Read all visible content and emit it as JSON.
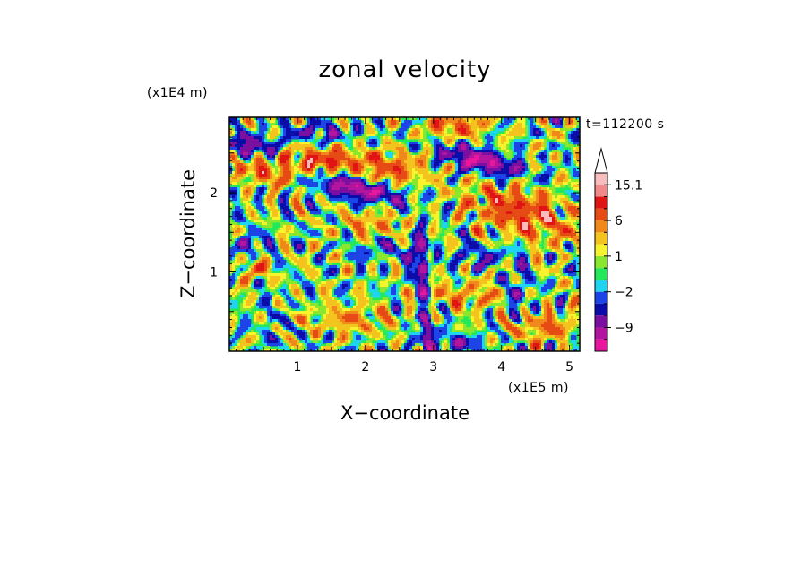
{
  "chart_data": {
    "type": "heatmap",
    "title": "zonal velocity",
    "xlabel": "X−coordinate",
    "ylabel": "Z−coordinate",
    "x_unit": "(x1E5 m)",
    "y_unit": "(x1E4 m)",
    "time_label": "t=112200 s",
    "xlim": [
      0,
      5.15
    ],
    "ylim": [
      0,
      2.95
    ],
    "x_ticks": [
      {
        "value": 1,
        "label": "1"
      },
      {
        "value": 2,
        "label": "2"
      },
      {
        "value": 3,
        "label": "3"
      },
      {
        "value": 4,
        "label": "4"
      },
      {
        "value": 5,
        "label": "5"
      }
    ],
    "y_ticks": [
      {
        "value": 1,
        "label": "1"
      },
      {
        "value": 2,
        "label": "2"
      }
    ],
    "colorbar": {
      "levels": [
        -15,
        -12,
        -9,
        -6,
        -4,
        -2,
        -1,
        0,
        1,
        2,
        4,
        6,
        9,
        12,
        15.1
      ],
      "colors": [
        "#e8179e",
        "#b2169e",
        "#7a0fa0",
        "#0c0ca8",
        "#1c44e6",
        "#1ed4f0",
        "#22e85a",
        "#8be62e",
        "#f7f32c",
        "#f3c41e",
        "#ef8a1a",
        "#e64b16",
        "#e01414",
        "#f08a8a",
        "#f7bcbc"
      ],
      "labels": [
        {
          "value": 15.1,
          "label": "15.1"
        },
        {
          "value": 6,
          "label": "6"
        },
        {
          "value": 1,
          "label": "1"
        },
        {
          "value": -2,
          "label": "−2"
        },
        {
          "value": -9,
          "label": "−9"
        }
      ],
      "extend_max": true
    },
    "features": [
      {
        "x": 1.9,
        "z": 2.05,
        "amp": -12,
        "sx": 0.45,
        "sz": 0.1,
        "rot": -0.18
      },
      {
        "x": 3.7,
        "z": 2.4,
        "amp": -12,
        "sx": 0.42,
        "sz": 0.1,
        "rot": -0.22
      },
      {
        "x": 0.3,
        "z": 2.6,
        "amp": -9,
        "sx": 0.25,
        "sz": 0.08,
        "rot": -0.1
      },
      {
        "x": 1.3,
        "z": 2.75,
        "amp": -6,
        "sx": 0.35,
        "sz": 0.08,
        "rot": 0.0
      },
      {
        "x": 2.85,
        "z": 1.1,
        "amp": -14,
        "sx": 0.08,
        "sz": 0.25,
        "rot": 0.0
      },
      {
        "x": 2.9,
        "z": 0.25,
        "amp": -10,
        "sx": 0.06,
        "sz": 0.25,
        "rot": 0.0
      },
      {
        "x": 3.35,
        "z": 0.1,
        "amp": -6,
        "sx": 0.25,
        "sz": 0.08,
        "rot": 0.0
      },
      {
        "x": 4.25,
        "z": 0.75,
        "amp": -6,
        "sx": 0.08,
        "sz": 0.25,
        "rot": 0.0
      },
      {
        "x": 0.6,
        "z": 0.35,
        "amp": -4,
        "sx": 0.05,
        "sz": 0.25,
        "rot": 0.0
      },
      {
        "x": 2.3,
        "z": 1.3,
        "amp": -4,
        "sx": 0.3,
        "sz": 0.1,
        "rot": 0.0
      },
      {
        "x": 3.7,
        "z": 1.2,
        "amp": -4,
        "sx": 0.35,
        "sz": 0.1,
        "rot": 0.0
      },
      {
        "x": 0.2,
        "z": 1.35,
        "amp": -5,
        "sx": 0.25,
        "sz": 0.1,
        "rot": 0.0
      },
      {
        "x": 1.35,
        "z": 2.4,
        "amp": 9,
        "sx": 0.4,
        "sz": 0.12,
        "rot": 0.0
      },
      {
        "x": 2.35,
        "z": 2.3,
        "amp": 7,
        "sx": 0.35,
        "sz": 0.15,
        "rot": 0.0
      },
      {
        "x": 4.3,
        "z": 1.75,
        "amp": 9,
        "sx": 0.55,
        "sz": 0.2,
        "rot": -0.25
      },
      {
        "x": 3.3,
        "z": 2.85,
        "amp": 7,
        "sx": 0.3,
        "sz": 0.12,
        "rot": 0.0
      },
      {
        "x": 0.5,
        "z": 2.25,
        "amp": 7,
        "sx": 0.3,
        "sz": 0.1,
        "rot": -0.2
      },
      {
        "x": 2.95,
        "z": 1.1,
        "amp": 9,
        "sx": 0.05,
        "sz": 0.2,
        "rot": 0.0
      },
      {
        "x": 3.5,
        "z": 0.7,
        "amp": 5,
        "sx": 0.35,
        "sz": 0.12,
        "rot": 0.0
      },
      {
        "x": 1.8,
        "z": 0.4,
        "amp": 5,
        "sx": 0.4,
        "sz": 0.12,
        "rot": 0.0
      },
      {
        "x": 4.6,
        "z": 0.3,
        "amp": 6,
        "sx": 0.35,
        "sz": 0.12,
        "rot": 0.0
      },
      {
        "x": 2.1,
        "z": 1.6,
        "amp": 5,
        "sx": 0.3,
        "sz": 0.12,
        "rot": 0.0
      },
      {
        "x": 0.35,
        "z": 1.05,
        "amp": 5,
        "sx": 0.2,
        "sz": 0.1,
        "rot": 0.0
      }
    ]
  }
}
